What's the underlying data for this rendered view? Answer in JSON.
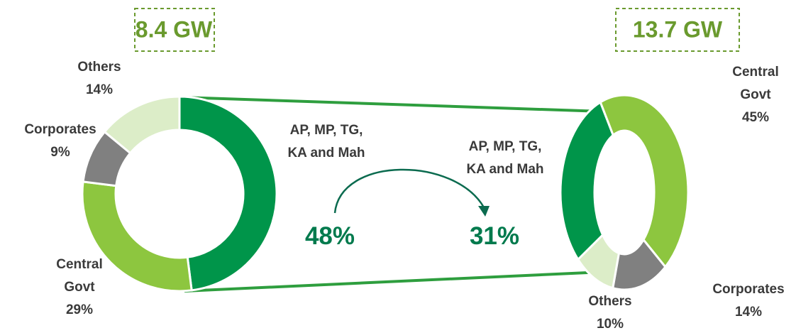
{
  "chart_data": [
    {
      "type": "donut",
      "title": "8.4 GW",
      "categories": [
        "AP, MP, TG, KA and Mah",
        "Central Govt",
        "Corporates",
        "Others"
      ],
      "values": [
        48,
        29,
        9,
        14
      ],
      "value_labels": [
        "48%",
        "29%",
        "9%",
        "14%"
      ],
      "colors": [
        "#00954a",
        "#8dc63f",
        "#808080",
        "#dcedc8"
      ]
    },
    {
      "type": "donut",
      "title": "13.7 GW",
      "categories": [
        "AP, MP, TG, KA and Mah",
        "Central Govt",
        "Corporates",
        "Others"
      ],
      "values": [
        31,
        45,
        14,
        10
      ],
      "value_labels": [
        "31%",
        "45%",
        "14%",
        "10%"
      ],
      "colors": [
        "#00954a",
        "#8dc63f",
        "#808080",
        "#dcedc8"
      ]
    }
  ]
}
